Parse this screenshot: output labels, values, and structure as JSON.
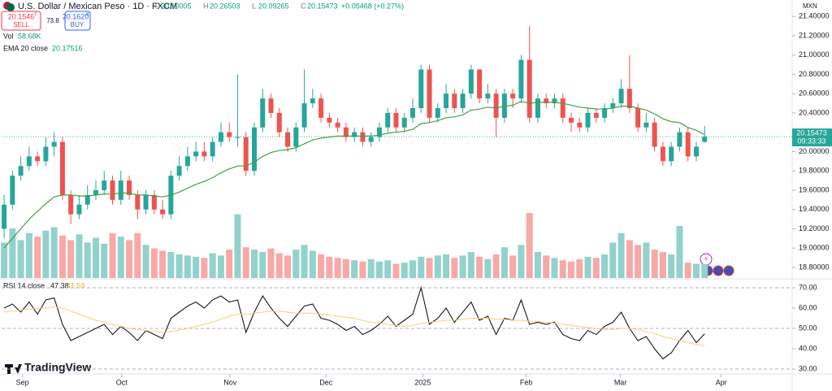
{
  "header": {
    "symbol": "U.S. Dollar / Mexican Peso · 1D · FXCM",
    "ohlc": [
      {
        "key": "O",
        "value": "20.10005"
      },
      {
        "key": "H",
        "value": "20.26503"
      },
      {
        "key": "L",
        "value": "20.09265"
      },
      {
        "key": "C",
        "value": "20.15473"
      }
    ],
    "change": "+0.05468 (+0.27%)",
    "sell": {
      "price": "20.1546",
      "price_sup": "7",
      "label": "SELL"
    },
    "spread": "73.8",
    "buy": {
      "price": "20.1620",
      "price_sup": "8",
      "label": "BUY"
    },
    "volume_legend": {
      "name": "Vol",
      "value": "58.68K"
    },
    "ema_legend": {
      "name": "EMA 20 close",
      "value": "20.17516"
    },
    "rsi_legend": {
      "name": "RSI 14 close",
      "value": "47.38",
      "ma_value": "41.59"
    },
    "currency": "MXN",
    "price_tag": {
      "price": "20.15473",
      "countdown": "09:33:33"
    },
    "logo": "TradingView"
  },
  "chart_data": {
    "type": "candlestick",
    "x": [
      0,
      1,
      2,
      3,
      4,
      5,
      6,
      7,
      8,
      9,
      10,
      11,
      12,
      13,
      14,
      15,
      16,
      17,
      18,
      19,
      20,
      21,
      22,
      23,
      24,
      25,
      26,
      27,
      28,
      29,
      30,
      31,
      32,
      33,
      34,
      35,
      36,
      37,
      38,
      39,
      40,
      41,
      42,
      43,
      44,
      45,
      46,
      47,
      48,
      49,
      50,
      51,
      52,
      53,
      54,
      55,
      56,
      57,
      58,
      59,
      60,
      61,
      62,
      63,
      64,
      65,
      66,
      67,
      68,
      69,
      70,
      71,
      72,
      73,
      74,
      75,
      76,
      77,
      78,
      79,
      80,
      81,
      82,
      83,
      84
    ],
    "open": [
      19.2,
      19.45,
      19.75,
      19.85,
      19.95,
      19.9,
      20.05,
      20.1,
      19.55,
      19.35,
      19.45,
      19.55,
      19.6,
      19.7,
      19.5,
      19.7,
      19.55,
      19.4,
      19.55,
      19.4,
      19.35,
      19.75,
      19.85,
      19.95,
      20.0,
      19.95,
      20.1,
      20.2,
      20.15,
      20.15,
      19.8,
      20.25,
      20.55,
      20.4,
      20.2,
      20.05,
      20.25,
      20.5,
      20.55,
      20.35,
      20.3,
      20.25,
      20.15,
      20.2,
      20.1,
      20.15,
      20.25,
      20.4,
      20.25,
      20.35,
      20.45,
      20.85,
      20.35,
      20.45,
      20.6,
      20.45,
      20.6,
      20.85,
      20.55,
      20.6,
      20.35,
      20.6,
      20.55,
      20.95,
      20.35,
      20.55,
      20.5,
      20.55,
      20.35,
      20.3,
      20.25,
      20.4,
      20.35,
      20.45,
      20.5,
      20.65,
      20.45,
      20.25,
      20.3,
      20.05,
      19.9,
      20.05,
      20.2,
      19.95,
      20.10005
    ],
    "high": [
      19.55,
      19.8,
      19.95,
      20.05,
      20.0,
      20.15,
      20.2,
      20.15,
      19.6,
      19.55,
      19.65,
      19.7,
      19.8,
      19.75,
      19.8,
      19.75,
      19.6,
      19.6,
      19.6,
      19.5,
      19.8,
      19.95,
      20.05,
      20.1,
      20.1,
      20.15,
      20.3,
      20.3,
      20.8,
      20.2,
      20.3,
      20.65,
      20.6,
      20.45,
      20.25,
      20.3,
      20.85,
      20.65,
      20.6,
      20.4,
      20.35,
      20.3,
      20.25,
      20.25,
      20.2,
      20.3,
      20.45,
      20.45,
      20.4,
      20.55,
      20.9,
      20.9,
      20.5,
      20.7,
      20.65,
      20.65,
      20.9,
      20.85,
      20.7,
      20.65,
      20.65,
      20.65,
      21.0,
      21.3,
      20.6,
      20.6,
      20.6,
      20.6,
      20.4,
      20.35,
      20.45,
      20.45,
      20.5,
      20.55,
      20.75,
      21.0,
      20.5,
      20.4,
      20.35,
      20.1,
      20.1,
      20.25,
      20.25,
      20.1,
      20.26503
    ],
    "low": [
      19.1,
      19.4,
      19.7,
      19.8,
      19.85,
      19.85,
      19.95,
      19.5,
      19.25,
      19.3,
      19.4,
      19.5,
      19.55,
      19.45,
      19.45,
      19.5,
      19.3,
      19.35,
      19.35,
      19.3,
      19.3,
      19.7,
      19.8,
      19.9,
      19.9,
      19.9,
      20.05,
      20.1,
      20.05,
      19.75,
      19.75,
      20.2,
      20.35,
      20.15,
      20.0,
      20.0,
      20.2,
      20.45,
      20.3,
      20.25,
      20.2,
      20.1,
      20.1,
      20.05,
      20.05,
      20.1,
      20.2,
      20.2,
      20.2,
      20.3,
      20.4,
      20.3,
      20.3,
      20.4,
      20.4,
      20.4,
      20.55,
      20.5,
      20.5,
      20.15,
      20.3,
      20.45,
      20.5,
      20.3,
      20.3,
      20.45,
      20.45,
      20.3,
      20.2,
      20.2,
      20.2,
      20.3,
      20.3,
      20.4,
      20.45,
      20.4,
      20.2,
      20.2,
      20.0,
      19.85,
      19.85,
      20.0,
      19.9,
      19.9,
      20.09265
    ],
    "close": [
      19.45,
      19.75,
      19.85,
      19.95,
      19.9,
      20.05,
      20.1,
      19.55,
      19.35,
      19.45,
      19.55,
      19.6,
      19.7,
      19.5,
      19.7,
      19.55,
      19.4,
      19.55,
      19.4,
      19.35,
      19.75,
      19.85,
      19.95,
      20.0,
      19.95,
      20.1,
      20.2,
      20.15,
      20.15,
      19.8,
      20.25,
      20.55,
      20.4,
      20.2,
      20.05,
      20.25,
      20.5,
      20.55,
      20.35,
      20.3,
      20.25,
      20.15,
      20.2,
      20.1,
      20.15,
      20.25,
      20.4,
      20.25,
      20.35,
      20.45,
      20.85,
      20.35,
      20.45,
      20.6,
      20.45,
      20.6,
      20.85,
      20.55,
      20.6,
      20.35,
      20.6,
      20.55,
      20.95,
      20.35,
      20.55,
      20.5,
      20.55,
      20.35,
      20.3,
      20.25,
      20.4,
      20.35,
      20.45,
      20.5,
      20.65,
      20.45,
      20.25,
      20.3,
      20.05,
      19.9,
      20.05,
      20.2,
      19.95,
      20.05,
      20.15473
    ],
    "volume": [
      150,
      210,
      160,
      190,
      175,
      200,
      215,
      180,
      160,
      185,
      150,
      170,
      145,
      190,
      175,
      160,
      190,
      140,
      125,
      115,
      110,
      100,
      95,
      90,
      85,
      105,
      95,
      120,
      270,
      130,
      120,
      110,
      125,
      105,
      95,
      120,
      140,
      115,
      100,
      90,
      85,
      80,
      75,
      70,
      80,
      70,
      75,
      60,
      65,
      75,
      90,
      85,
      95,
      100,
      85,
      95,
      110,
      90,
      80,
      100,
      130,
      95,
      140,
      275,
      110,
      95,
      85,
      75,
      70,
      80,
      90,
      85,
      100,
      150,
      190,
      160,
      140,
      150,
      120,
      110,
      100,
      220,
      65,
      60,
      58.68
    ],
    "ema": [
      19.0,
      19.1,
      19.2,
      19.3,
      19.38,
      19.46,
      19.53,
      19.55,
      19.55,
      19.54,
      19.54,
      19.55,
      19.56,
      19.56,
      19.57,
      19.57,
      19.55,
      19.55,
      19.54,
      19.53,
      19.55,
      19.58,
      19.62,
      19.66,
      19.69,
      19.73,
      19.78,
      19.82,
      19.85,
      19.85,
      19.89,
      19.95,
      19.99,
      20.01,
      20.02,
      20.04,
      20.08,
      20.12,
      20.14,
      20.15,
      20.16,
      20.16,
      20.16,
      20.16,
      20.16,
      20.17,
      20.19,
      20.2,
      20.21,
      20.23,
      20.29,
      20.3,
      20.32,
      20.35,
      20.36,
      20.38,
      20.43,
      20.44,
      20.46,
      20.45,
      20.47,
      20.48,
      20.52,
      20.5,
      20.51,
      20.51,
      20.51,
      20.5,
      20.48,
      20.46,
      20.45,
      20.44,
      20.44,
      20.45,
      20.47,
      20.47,
      20.45,
      20.43,
      20.39,
      20.34,
      20.31,
      20.3,
      20.25,
      20.22,
      20.17516
    ],
    "colors": {
      "up": "#26a69a",
      "down": "#ef5350",
      "volume_up": "#92d2cc",
      "volume_down": "#f7a9a7",
      "ema": "#43a047"
    },
    "xlim": [
      -0.3,
      94.5
    ],
    "xticks": [
      {
        "value": 2.2,
        "label": "Sep"
      },
      {
        "value": 14.1,
        "label": "Oct"
      },
      {
        "value": 27.1,
        "label": "Nov"
      },
      {
        "value": 38.6,
        "label": "Dec"
      },
      {
        "value": 50.2,
        "label": "2025"
      },
      {
        "value": 62.6,
        "label": "Feb"
      },
      {
        "value": 73.9,
        "label": "Mar"
      },
      {
        "value": 86.0,
        "label": "Apr"
      }
    ],
    "ylim": [
      18.69,
      21.57
    ],
    "yticks": [
      {
        "value": 18.8,
        "label": "18.80000"
      },
      {
        "value": 19.0,
        "label": "19.00000"
      },
      {
        "value": 19.2,
        "label": "19.20000"
      },
      {
        "value": 19.4,
        "label": "19.40000"
      },
      {
        "value": 19.6,
        "label": "19.60000"
      },
      {
        "value": 19.8,
        "label": "19.80000"
      },
      {
        "value": 20.0,
        "label": "20.00000"
      },
      {
        "value": 20.2,
        "label": "20.20000"
      },
      {
        "value": 20.4,
        "label": "20.40000"
      },
      {
        "value": 20.6,
        "label": "20.60000"
      },
      {
        "value": 20.8,
        "label": "20.80000"
      },
      {
        "value": 21.0,
        "label": "21.00000"
      },
      {
        "value": 21.2,
        "label": "21.20000"
      },
      {
        "value": 21.4,
        "label": "21.40000"
      }
    ],
    "grid": false,
    "rsi": {
      "ylim": [
        27.6,
        73.6
      ],
      "yticks": [
        {
          "value": 30,
          "label": "30.00"
        },
        {
          "value": 40,
          "label": "40.00"
        },
        {
          "value": 50,
          "label": "50.00"
        },
        {
          "value": 60,
          "label": "60.00"
        },
        {
          "value": 70,
          "label": "70.00"
        }
      ],
      "series": [
        {
          "name": "RSI",
          "color": "#131722",
          "values": [
            60,
            62,
            58,
            63,
            57,
            64,
            65,
            52,
            44,
            46,
            48,
            50,
            52,
            47,
            51,
            48,
            44,
            49,
            47,
            45,
            55,
            58,
            61,
            63,
            60,
            64,
            66,
            63,
            64,
            48,
            58,
            66,
            60,
            55,
            51,
            56,
            61,
            62,
            55,
            54,
            52,
            49,
            51,
            47,
            49,
            52,
            56,
            51,
            54,
            57,
            70,
            52,
            55,
            60,
            53,
            58,
            63,
            54,
            56,
            47,
            55,
            54,
            64,
            52,
            53,
            52,
            53,
            47,
            45,
            44,
            49,
            47,
            51,
            53,
            58,
            50,
            44,
            46,
            40,
            35,
            38,
            44,
            49,
            43,
            47.38
          ]
        },
        {
          "name": "RSI MA",
          "color": "#f0d27a",
          "values": [
            58,
            58.5,
            59,
            59.5,
            60,
            60,
            60.5,
            60,
            58.5,
            57,
            55.5,
            54,
            53,
            52,
            51,
            50,
            49.5,
            49,
            48.5,
            48,
            48.5,
            49,
            50,
            51,
            52,
            53,
            54.5,
            56,
            57,
            57,
            57.5,
            58,
            58.5,
            58.5,
            58,
            57.5,
            57.5,
            57.5,
            57,
            56.5,
            56,
            55.5,
            55,
            54,
            53,
            52.5,
            52,
            51.5,
            51,
            51.5,
            52.5,
            53,
            53.5,
            54,
            54,
            54.5,
            55,
            55,
            55,
            54.5,
            54.5,
            54,
            54,
            53.5,
            53.5,
            53,
            52.5,
            52,
            51.5,
            51,
            50.5,
            50,
            49.5,
            49.5,
            50,
            50,
            49.5,
            48.5,
            47.5,
            46,
            45,
            44,
            43,
            42,
            41.59
          ]
        }
      ]
    }
  }
}
